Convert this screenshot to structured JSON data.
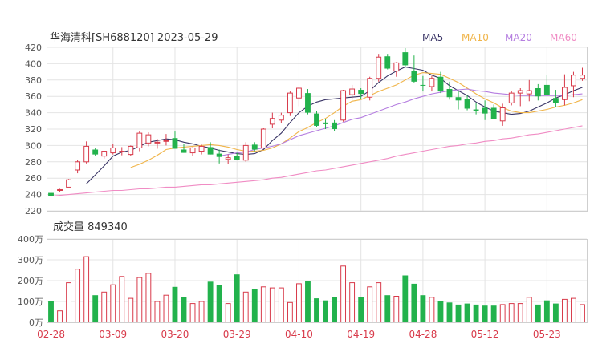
{
  "header": {
    "title": "华海清科[SH688120] 2023-05-29",
    "ma_labels": [
      {
        "label": "MA5",
        "color": "#3a3566"
      },
      {
        "label": "MA10",
        "color": "#f0b448"
      },
      {
        "label": "MA20",
        "color": "#b57ee0"
      },
      {
        "label": "MA60",
        "color": "#f08cc4"
      }
    ]
  },
  "volume_header": "成交量 849340",
  "colors": {
    "up": "#d83a4a",
    "down": "#22b24c",
    "grid": "#e4e4e4",
    "axis": "#555555",
    "date": "#d83a4a"
  },
  "chart_data": [
    {
      "type": "candlestick",
      "y_ticks": [
        "420",
        "400",
        "380",
        "360",
        "340",
        "320",
        "300",
        "280",
        "260",
        "240",
        "220"
      ],
      "ylim": [
        220,
        420
      ],
      "x_tick_labels": [
        {
          "label": "02-28",
          "index": 0
        },
        {
          "label": "03-09",
          "index": 7
        },
        {
          "label": "03-20",
          "index": 14
        },
        {
          "label": "03-29",
          "index": 21
        },
        {
          "label": "04-10",
          "index": 28
        },
        {
          "label": "04-19",
          "index": 35
        },
        {
          "label": "04-28",
          "index": 42
        },
        {
          "label": "05-12",
          "index": 49
        },
        {
          "label": "05-23",
          "index": 56
        }
      ],
      "ohlc": [
        [
          242,
          247,
          238,
          238
        ],
        [
          245,
          247,
          243,
          246
        ],
        [
          249,
          259,
          249,
          258
        ],
        [
          270,
          282,
          266,
          280
        ],
        [
          280,
          305,
          278,
          299
        ],
        [
          295,
          297,
          287,
          289
        ],
        [
          287,
          293,
          284,
          293
        ],
        [
          291,
          302,
          289,
          297
        ],
        [
          293,
          298,
          288,
          293
        ],
        [
          289,
          300,
          287,
          299
        ],
        [
          297,
          318,
          293,
          315
        ],
        [
          303,
          316,
          299,
          313
        ],
        [
          303,
          308,
          296,
          304
        ],
        [
          306,
          314,
          300,
          306
        ],
        [
          309,
          317,
          296,
          296
        ],
        [
          295,
          302,
          291,
          291
        ],
        [
          291,
          298,
          287,
          297
        ],
        [
          293,
          301,
          289,
          299
        ],
        [
          298,
          304,
          289,
          289
        ],
        [
          290,
          295,
          278,
          286
        ],
        [
          283,
          289,
          277,
          285
        ],
        [
          287,
          291,
          282,
          282
        ],
        [
          282,
          304,
          280,
          300
        ],
        [
          301,
          304,
          293,
          295
        ],
        [
          297,
          321,
          296,
          320
        ],
        [
          326,
          340,
          321,
          333
        ],
        [
          331,
          340,
          327,
          337
        ],
        [
          340,
          366,
          336,
          364
        ],
        [
          358,
          371,
          348,
          370
        ],
        [
          364,
          369,
          338,
          340
        ],
        [
          339,
          342,
          322,
          324
        ],
        [
          328,
          332,
          320,
          326
        ],
        [
          328,
          331,
          318,
          320
        ],
        [
          331,
          368,
          329,
          367
        ],
        [
          362,
          374,
          356,
          369
        ],
        [
          368,
          370,
          357,
          363
        ],
        [
          359,
          384,
          355,
          382
        ],
        [
          382,
          412,
          378,
          408
        ],
        [
          409,
          412,
          393,
          394
        ],
        [
          391,
          402,
          384,
          401
        ],
        [
          414,
          419,
          396,
          398
        ],
        [
          391,
          410,
          377,
          378
        ],
        [
          374,
          385,
          366,
          373
        ],
        [
          372,
          385,
          366,
          382
        ],
        [
          384,
          390,
          364,
          366
        ],
        [
          369,
          378,
          356,
          359
        ],
        [
          359,
          367,
          344,
          355
        ],
        [
          357,
          361,
          343,
          345
        ],
        [
          344,
          352,
          338,
          342
        ],
        [
          346,
          355,
          331,
          339
        ],
        [
          346,
          350,
          332,
          332
        ],
        [
          330,
          351,
          324,
          346
        ],
        [
          352,
          367,
          349,
          364
        ],
        [
          364,
          370,
          348,
          367
        ],
        [
          363,
          380,
          354,
          367
        ],
        [
          370,
          375,
          355,
          360
        ],
        [
          374,
          386,
          364,
          362
        ],
        [
          358,
          368,
          347,
          352
        ],
        [
          356,
          387,
          349,
          371
        ],
        [
          373,
          390,
          359,
          386
        ],
        [
          382,
          395,
          379,
          386
        ]
      ],
      "ma": {
        "MA5": [
          null,
          null,
          null,
          null,
          253,
          264,
          275,
          287,
          292,
          294,
          299,
          304,
          306,
          308,
          307,
          304,
          302,
          299,
          297,
          294,
          292,
          290,
          289,
          290,
          295,
          306,
          315,
          328,
          340,
          348,
          353,
          356,
          357,
          358,
          359,
          360,
          367,
          377,
          385,
          391,
          396,
          394,
          392,
          386,
          382,
          373,
          367,
          361,
          353,
          347,
          342,
          340,
          338,
          339,
          342,
          347,
          352,
          358,
          362,
          367,
          371
        ],
        "MA10": [
          null,
          null,
          null,
          null,
          null,
          null,
          null,
          null,
          null,
          273,
          277,
          282,
          288,
          295,
          297,
          298,
          299,
          300,
          301,
          300,
          298,
          295,
          293,
          293,
          294,
          297,
          302,
          309,
          317,
          322,
          328,
          333,
          340,
          348,
          354,
          356,
          361,
          366,
          370,
          374,
          380,
          386,
          389,
          388,
          387,
          382,
          377,
          370,
          363,
          357,
          352,
          346,
          342,
          340,
          340,
          342,
          344,
          347,
          349,
          352,
          356
        ],
        "MA20": [
          null,
          null,
          null,
          null,
          null,
          null,
          null,
          null,
          null,
          null,
          null,
          null,
          null,
          null,
          null,
          null,
          null,
          null,
          null,
          287,
          289,
          291,
          292,
          295,
          297,
          299,
          302,
          307,
          312,
          315,
          318,
          321,
          324,
          328,
          332,
          334,
          338,
          342,
          346,
          350,
          353,
          357,
          360,
          363,
          365,
          367,
          368,
          369,
          367,
          366,
          364,
          363,
          362,
          361,
          361,
          361,
          361,
          361,
          361,
          362,
          363
        ],
        "MA60": [
          238,
          239,
          240,
          241,
          242,
          243,
          244,
          245,
          245,
          246,
          247,
          247,
          248,
          249,
          249,
          250,
          251,
          252,
          252,
          253,
          254,
          255,
          256,
          257,
          258,
          260,
          261,
          263,
          265,
          267,
          269,
          270,
          272,
          274,
          276,
          278,
          280,
          282,
          284,
          287,
          289,
          291,
          293,
          295,
          297,
          299,
          300,
          302,
          303,
          305,
          306,
          308,
          309,
          311,
          313,
          314,
          316,
          318,
          320,
          322,
          324
        ]
      }
    },
    {
      "type": "bar",
      "y_ticks": [
        "400万",
        "300万",
        "200万",
        "100万",
        "0万"
      ],
      "ylim": [
        0,
        4000000
      ],
      "unit": "万",
      "volume": [
        1000000,
        550000,
        1900000,
        2550000,
        3150000,
        1300000,
        1450000,
        1800000,
        2200000,
        1150000,
        2150000,
        2350000,
        1000000,
        1300000,
        1700000,
        1200000,
        900000,
        1000000,
        1950000,
        1800000,
        900000,
        2300000,
        1450000,
        1600000,
        1700000,
        1650000,
        1650000,
        950000,
        1850000,
        2000000,
        1150000,
        1050000,
        1200000,
        2700000,
        1900000,
        1200000,
        1700000,
        1900000,
        1300000,
        1250000,
        2250000,
        1850000,
        1300000,
        1200000,
        1000000,
        950000,
        850000,
        900000,
        850000,
        800000,
        800000,
        850000,
        900000,
        900000,
        1200000,
        850000,
        1050000,
        900000,
        1100000,
        1150000,
        849340
      ]
    }
  ]
}
